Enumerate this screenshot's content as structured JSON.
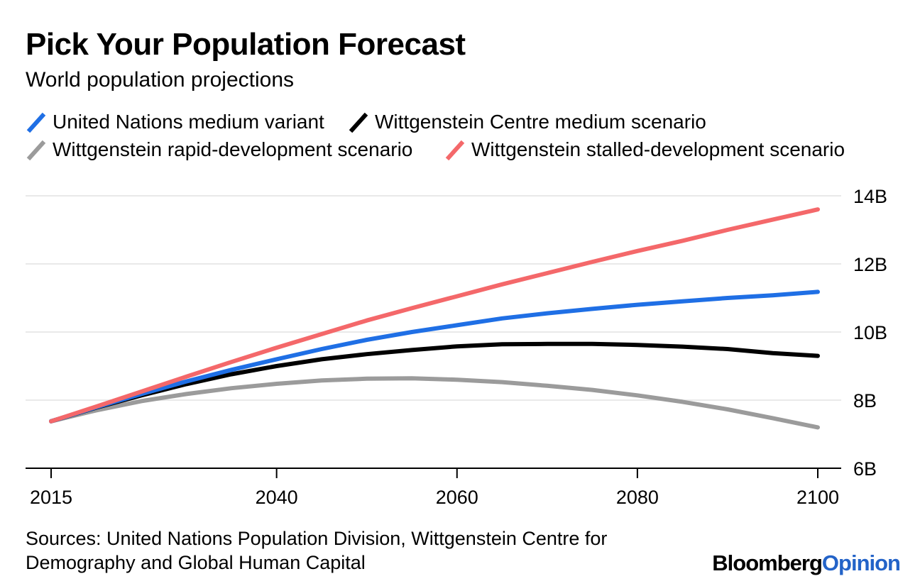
{
  "title": "Pick Your Population Forecast",
  "subtitle": "World population projections",
  "legend": [
    {
      "label": "United Nations medium variant",
      "color": "#1f6fe5"
    },
    {
      "label": "Wittgenstein Centre medium scenario",
      "color": "#000000"
    },
    {
      "label": "Wittgenstein rapid-development scenario",
      "color": "#9b9b9b"
    },
    {
      "label": "Wittgenstein stalled-development scenario",
      "color": "#f4686a"
    }
  ],
  "source": "Sources: United Nations Population Division, Wittgenstein Centre for Demography and Global Human Capital",
  "brand": {
    "part1": "Bloomberg",
    "part2": "Opinion",
    "accent": "#2363c8"
  },
  "chart_data": {
    "type": "line",
    "title": "Pick Your Population Forecast",
    "subtitle": "World population projections",
    "xlabel": "",
    "ylabel": "",
    "xlim": [
      2015,
      2100
    ],
    "ylim": [
      6,
      14
    ],
    "x_ticks": [
      2015,
      2040,
      2060,
      2080,
      2100
    ],
    "y_ticks": [
      6,
      8,
      10,
      12,
      14
    ],
    "y_tick_labels": [
      "6B",
      "8B",
      "10B",
      "12B",
      "14B"
    ],
    "y_axis_side": "right",
    "grid": true,
    "legend_position": "top",
    "x": [
      2015,
      2020,
      2025,
      2030,
      2035,
      2040,
      2045,
      2050,
      2055,
      2060,
      2065,
      2070,
      2075,
      2080,
      2085,
      2090,
      2095,
      2100
    ],
    "series": [
      {
        "name": "United Nations medium variant",
        "color": "#1f6fe5",
        "values": [
          7.38,
          7.79,
          8.18,
          8.55,
          8.89,
          9.2,
          9.5,
          9.77,
          10.0,
          10.2,
          10.4,
          10.55,
          10.68,
          10.8,
          10.9,
          11.0,
          11.08,
          11.18
        ]
      },
      {
        "name": "Wittgenstein Centre medium scenario",
        "color": "#000000",
        "values": [
          7.38,
          7.78,
          8.14,
          8.47,
          8.76,
          9.0,
          9.2,
          9.35,
          9.47,
          9.58,
          9.64,
          9.65,
          9.65,
          9.62,
          9.57,
          9.5,
          9.38,
          9.3
        ]
      },
      {
        "name": "Wittgenstein rapid-development scenario",
        "color": "#9b9b9b",
        "values": [
          7.38,
          7.7,
          7.97,
          8.18,
          8.35,
          8.48,
          8.58,
          8.63,
          8.64,
          8.6,
          8.53,
          8.42,
          8.3,
          8.14,
          7.95,
          7.73,
          7.47,
          7.2
        ]
      },
      {
        "name": "Wittgenstein stalled-development scenario",
        "color": "#f4686a",
        "values": [
          7.38,
          7.81,
          8.25,
          8.69,
          9.12,
          9.54,
          9.94,
          10.34,
          10.7,
          11.05,
          11.4,
          11.73,
          12.06,
          12.38,
          12.68,
          13.0,
          13.3,
          13.6
        ]
      }
    ]
  }
}
